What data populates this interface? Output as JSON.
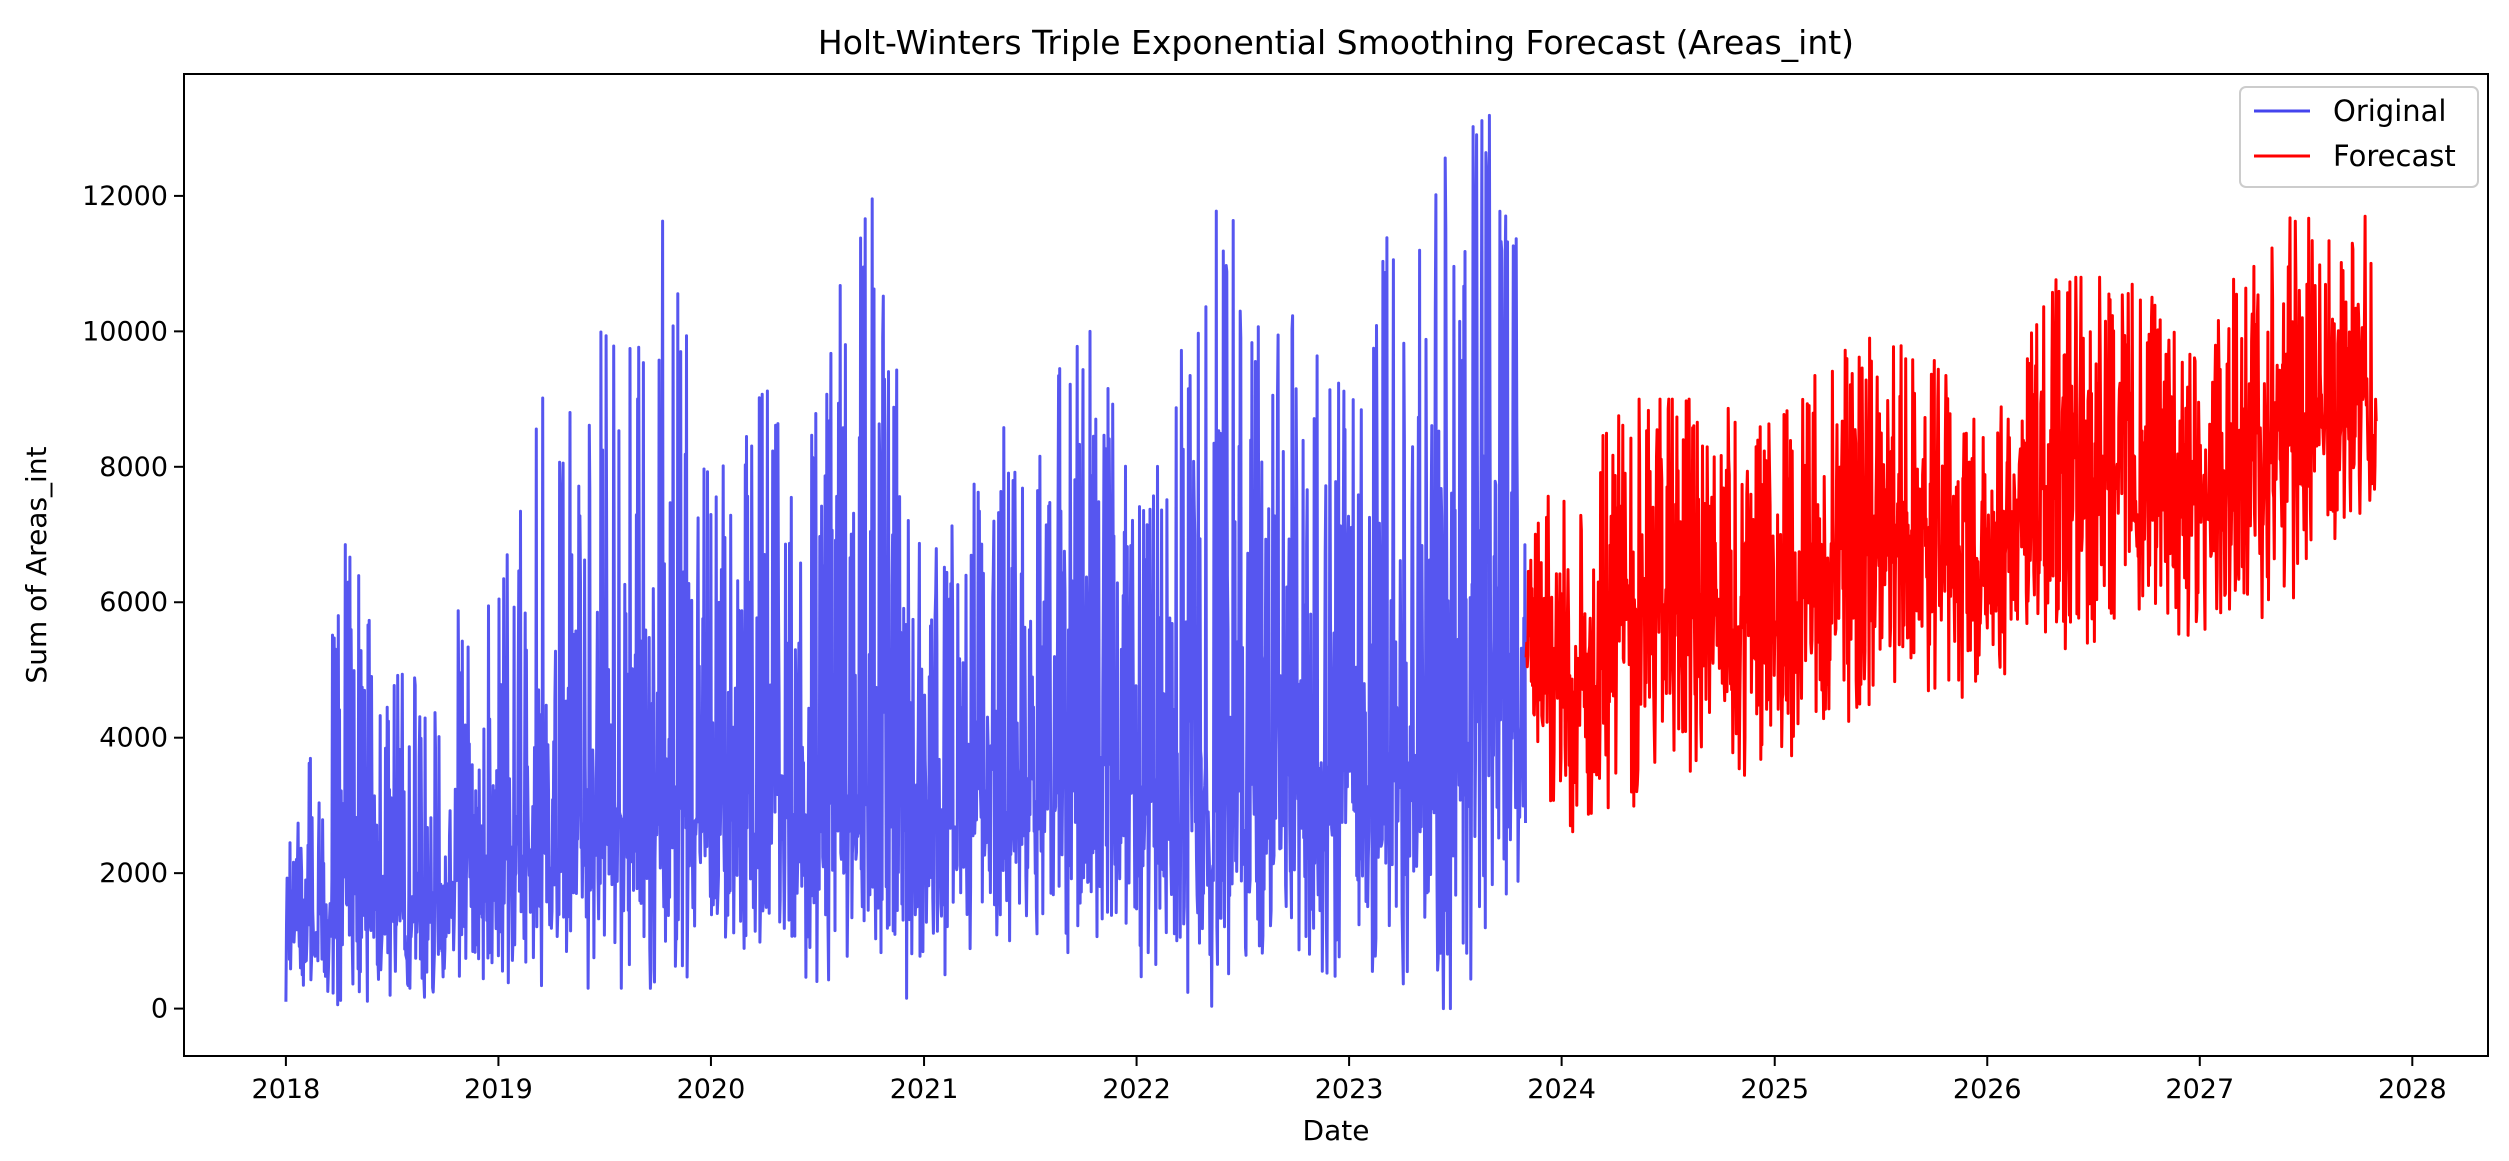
{
  "chart_data": {
    "type": "line",
    "title": "Holt-Winters Triple Exponential Smoothing Forecast (Areas_int)",
    "xlabel": "Date",
    "ylabel": "Sum of Areas_int",
    "x_range": [
      "2017-07-10",
      "2028-05-10"
    ],
    "xlim": [
      "2017-07-10",
      "2028-05-10"
    ],
    "ylim": [
      -700,
      13800
    ],
    "x_ticks": [
      "2018",
      "2019",
      "2020",
      "2021",
      "2022",
      "2023",
      "2024",
      "2025",
      "2026",
      "2027",
      "2028"
    ],
    "y_ticks": [
      "0",
      "2000",
      "4000",
      "6000",
      "8000",
      "10000",
      "12000"
    ],
    "grid": false,
    "legend_position": "top-right",
    "series": [
      {
        "name": "Original",
        "color": "#4444ee",
        "start": "2018-01-01",
        "end": "2023-10-31",
        "frequency": "daily",
        "envelope": [
          {
            "date": "2018-01-01",
            "low": 0,
            "high": 2200,
            "mid": 1200
          },
          {
            "date": "2018-03-01",
            "low": 0,
            "high": 4300,
            "mid": 1400
          },
          {
            "date": "2018-04-01",
            "low": 0,
            "high": 7700,
            "mid": 1500
          },
          {
            "date": "2018-07-01",
            "low": 200,
            "high": 4800,
            "mid": 1600
          },
          {
            "date": "2018-10-01",
            "low": 100,
            "high": 5800,
            "mid": 1800
          },
          {
            "date": "2019-01-01",
            "low": 400,
            "high": 6100,
            "mid": 2100
          },
          {
            "date": "2019-04-01",
            "low": 300,
            "high": 9700,
            "mid": 2500
          },
          {
            "date": "2019-07-01",
            "low": 300,
            "high": 10200,
            "mid": 3000
          },
          {
            "date": "2019-10-01",
            "low": 300,
            "high": 12000,
            "mid": 3200
          },
          {
            "date": "2020-01-01",
            "low": 600,
            "high": 8200,
            "mid": 2600
          },
          {
            "date": "2020-04-01",
            "low": 700,
            "high": 9100,
            "mid": 2900
          },
          {
            "date": "2020-07-01",
            "low": 400,
            "high": 9400,
            "mid": 3000
          },
          {
            "date": "2020-09-25",
            "low": 500,
            "high": 12500,
            "mid": 3100
          },
          {
            "date": "2021-01-01",
            "low": 0,
            "high": 6600,
            "mid": 2900
          },
          {
            "date": "2021-06-01",
            "low": 800,
            "high": 8800,
            "mid": 3300
          },
          {
            "date": "2021-10-01",
            "low": 800,
            "high": 10300,
            "mid": 3500
          },
          {
            "date": "2022-01-01",
            "low": 500,
            "high": 8000,
            "mid": 3300
          },
          {
            "date": "2022-05-20",
            "low": 0,
            "high": 12000,
            "mid": 3600
          },
          {
            "date": "2022-09-01",
            "low": 800,
            "high": 10600,
            "mid": 3700
          },
          {
            "date": "2023-01-01",
            "low": 400,
            "high": 9000,
            "mid": 3500
          },
          {
            "date": "2023-04-01",
            "low": 0,
            "high": 12300,
            "mid": 3800
          },
          {
            "date": "2023-09-01",
            "low": 0,
            "high": 13200,
            "mid": 4200
          },
          {
            "date": "2023-10-31",
            "low": 2400,
            "high": 10700,
            "mid": 4500
          }
        ]
      },
      {
        "name": "Forecast",
        "color": "#ff0000",
        "start": "2023-11-01",
        "end": "2027-10-31",
        "frequency": "daily",
        "envelope": [
          {
            "date": "2023-11-01",
            "low": 4400,
            "high": 7400,
            "mid": 5600
          },
          {
            "date": "2024-01-01",
            "low": 2400,
            "high": 7700,
            "mid": 4800
          },
          {
            "date": "2024-05-01",
            "low": 2800,
            "high": 9000,
            "mid": 5800
          },
          {
            "date": "2024-09-01",
            "low": 3400,
            "high": 9000,
            "mid": 6000
          },
          {
            "date": "2025-01-01",
            "low": 3400,
            "high": 8600,
            "mid": 5500
          },
          {
            "date": "2025-05-01",
            "low": 3700,
            "high": 9900,
            "mid": 6600
          },
          {
            "date": "2025-09-01",
            "low": 4300,
            "high": 9900,
            "mid": 7000
          },
          {
            "date": "2026-01-01",
            "low": 4300,
            "high": 8600,
            "mid": 6500
          },
          {
            "date": "2026-05-01",
            "low": 5100,
            "high": 10800,
            "mid": 7600
          },
          {
            "date": "2026-09-01",
            "low": 5400,
            "high": 10800,
            "mid": 8000
          },
          {
            "date": "2027-01-01",
            "low": 5200,
            "high": 9900,
            "mid": 7400
          },
          {
            "date": "2027-05-01",
            "low": 5500,
            "high": 11700,
            "mid": 8500
          },
          {
            "date": "2027-10-31",
            "low": 7400,
            "high": 11700,
            "mid": 9000
          }
        ]
      }
    ]
  }
}
